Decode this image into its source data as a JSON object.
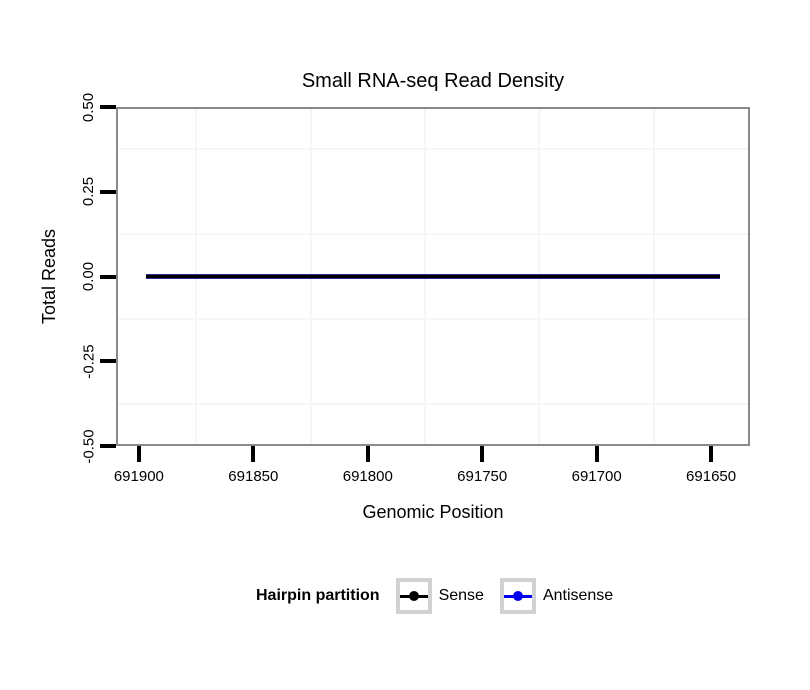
{
  "title": "Small RNA-seq Read Density",
  "axes": {
    "x": {
      "label": "Genomic Position",
      "tick_labels": [
        "691900",
        "691850",
        "691800",
        "691750",
        "691700",
        "691650"
      ],
      "tick_values": [
        691900,
        691850,
        691800,
        691750,
        691700,
        691650
      ],
      "reversed": true
    },
    "y": {
      "label": "Total Reads",
      "tick_labels": [
        "0.50",
        "0.25",
        "0.00",
        "-0.25",
        "-0.50"
      ],
      "tick_values": [
        0.5,
        0.25,
        0.0,
        -0.25,
        -0.5
      ]
    }
  },
  "legend": {
    "title": "Hairpin partition",
    "items": [
      {
        "label": "Sense",
        "color": "#000000"
      },
      {
        "label": "Antisense",
        "color": "#0000ee"
      }
    ]
  },
  "colors": {
    "panel_border": "#8a8a8a",
    "tick_mark": "#000000",
    "grid_minor": "#f6f6f6",
    "legend_key_border": "#d2d2d2",
    "overlap_line_edge": "#28289a",
    "overlap_line_core": "#000000"
  },
  "chart_data": {
    "type": "line",
    "title": "Small RNA-seq Read Density",
    "xlabel": "Genomic Position",
    "ylabel": "Total Reads",
    "x_ticks": [
      691900,
      691850,
      691800,
      691750,
      691700,
      691650
    ],
    "x_axis_reversed": true,
    "xlim": [
      691910,
      691633
    ],
    "ylim": [
      -0.5,
      0.5
    ],
    "y_ticks": [
      0.5,
      0.25,
      0.0,
      -0.25,
      -0.5
    ],
    "grid": "minor-gridlines-only",
    "legend_position": "bottom",
    "legend_title": "Hairpin partition",
    "series": [
      {
        "name": "Sense",
        "color": "#000000",
        "x_start": 691897,
        "x_end": 691646,
        "y_constant": 0
      },
      {
        "name": "Antisense",
        "color": "#0000ee",
        "x_start": 691897,
        "x_end": 691646,
        "y_constant": 0
      }
    ]
  }
}
